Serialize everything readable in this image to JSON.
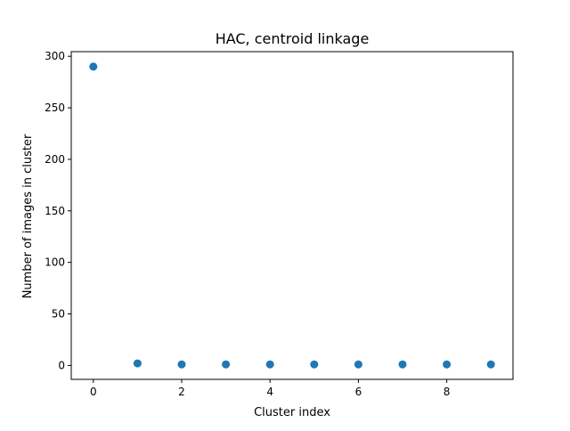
{
  "chart_data": {
    "type": "scatter",
    "title": "HAC, centroid linkage",
    "xlabel": "Cluster index",
    "ylabel": "Number of images in cluster",
    "x": [
      0,
      1,
      2,
      3,
      4,
      5,
      6,
      7,
      8,
      9
    ],
    "y": [
      290,
      2,
      1,
      1,
      1,
      1,
      1,
      1,
      1,
      1
    ],
    "xlim": [
      -0.5,
      9.5
    ],
    "ylim": [
      -13.5,
      304.5
    ],
    "xticks": [
      0,
      2,
      4,
      6,
      8
    ],
    "yticks": [
      0,
      50,
      100,
      150,
      200,
      250,
      300
    ],
    "grid": false,
    "legend": "none",
    "marker_color": "#1f77b4"
  }
}
